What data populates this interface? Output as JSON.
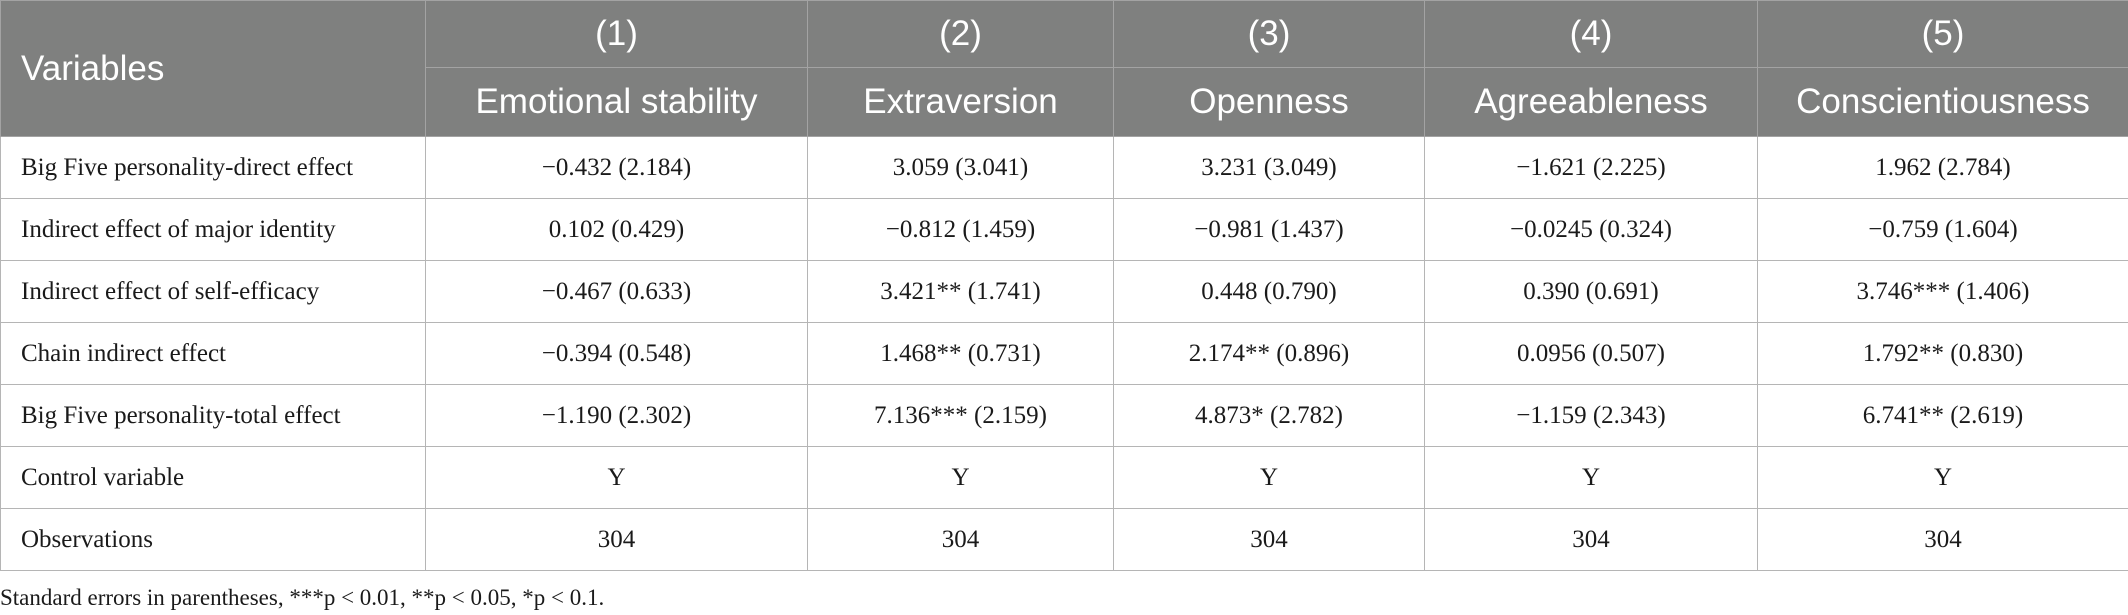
{
  "table": {
    "variables_label": "Variables",
    "columns": [
      {
        "number": "(1)",
        "name": "Emotional stability"
      },
      {
        "number": "(2)",
        "name": "Extraversion"
      },
      {
        "number": "(3)",
        "name": "Openness"
      },
      {
        "number": "(4)",
        "name": "Agreeableness"
      },
      {
        "number": "(5)",
        "name": "Conscientiousness"
      }
    ],
    "rows": [
      {
        "label": "Big Five personality-direct effect",
        "cells": [
          "−0.432 (2.184)",
          "3.059 (3.041)",
          "3.231 (3.049)",
          "−1.621 (2.225)",
          "1.962 (2.784)"
        ]
      },
      {
        "label": "Indirect effect of major identity",
        "cells": [
          "0.102 (0.429)",
          "−0.812 (1.459)",
          "−0.981 (1.437)",
          "−0.0245 (0.324)",
          "−0.759 (1.604)"
        ]
      },
      {
        "label": "Indirect effect of self-efficacy",
        "cells": [
          "−0.467 (0.633)",
          "3.421** (1.741)",
          "0.448 (0.790)",
          "0.390 (0.691)",
          "3.746*** (1.406)"
        ]
      },
      {
        "label": "Chain indirect effect",
        "cells": [
          "−0.394 (0.548)",
          "1.468** (0.731)",
          "2.174** (0.896)",
          "0.0956 (0.507)",
          "1.792** (0.830)"
        ]
      },
      {
        "label": "Big Five personality-total effect",
        "cells": [
          "−1.190 (2.302)",
          "7.136*** (2.159)",
          "4.873* (2.782)",
          "−1.159 (2.343)",
          "6.741** (2.619)"
        ]
      },
      {
        "label": "Control variable",
        "cells": [
          "Y",
          "Y",
          "Y",
          "Y",
          "Y"
        ]
      },
      {
        "label": "Observations",
        "cells": [
          "304",
          "304",
          "304",
          "304",
          "304"
        ]
      }
    ]
  },
  "note": "Standard errors in parentheses, ***p < 0.01, **p < 0.05, *p < 0.1.",
  "colors": {
    "header_background": "#7f807f",
    "header_text": "#ffffff",
    "grid_line": "#b5b5b5"
  }
}
